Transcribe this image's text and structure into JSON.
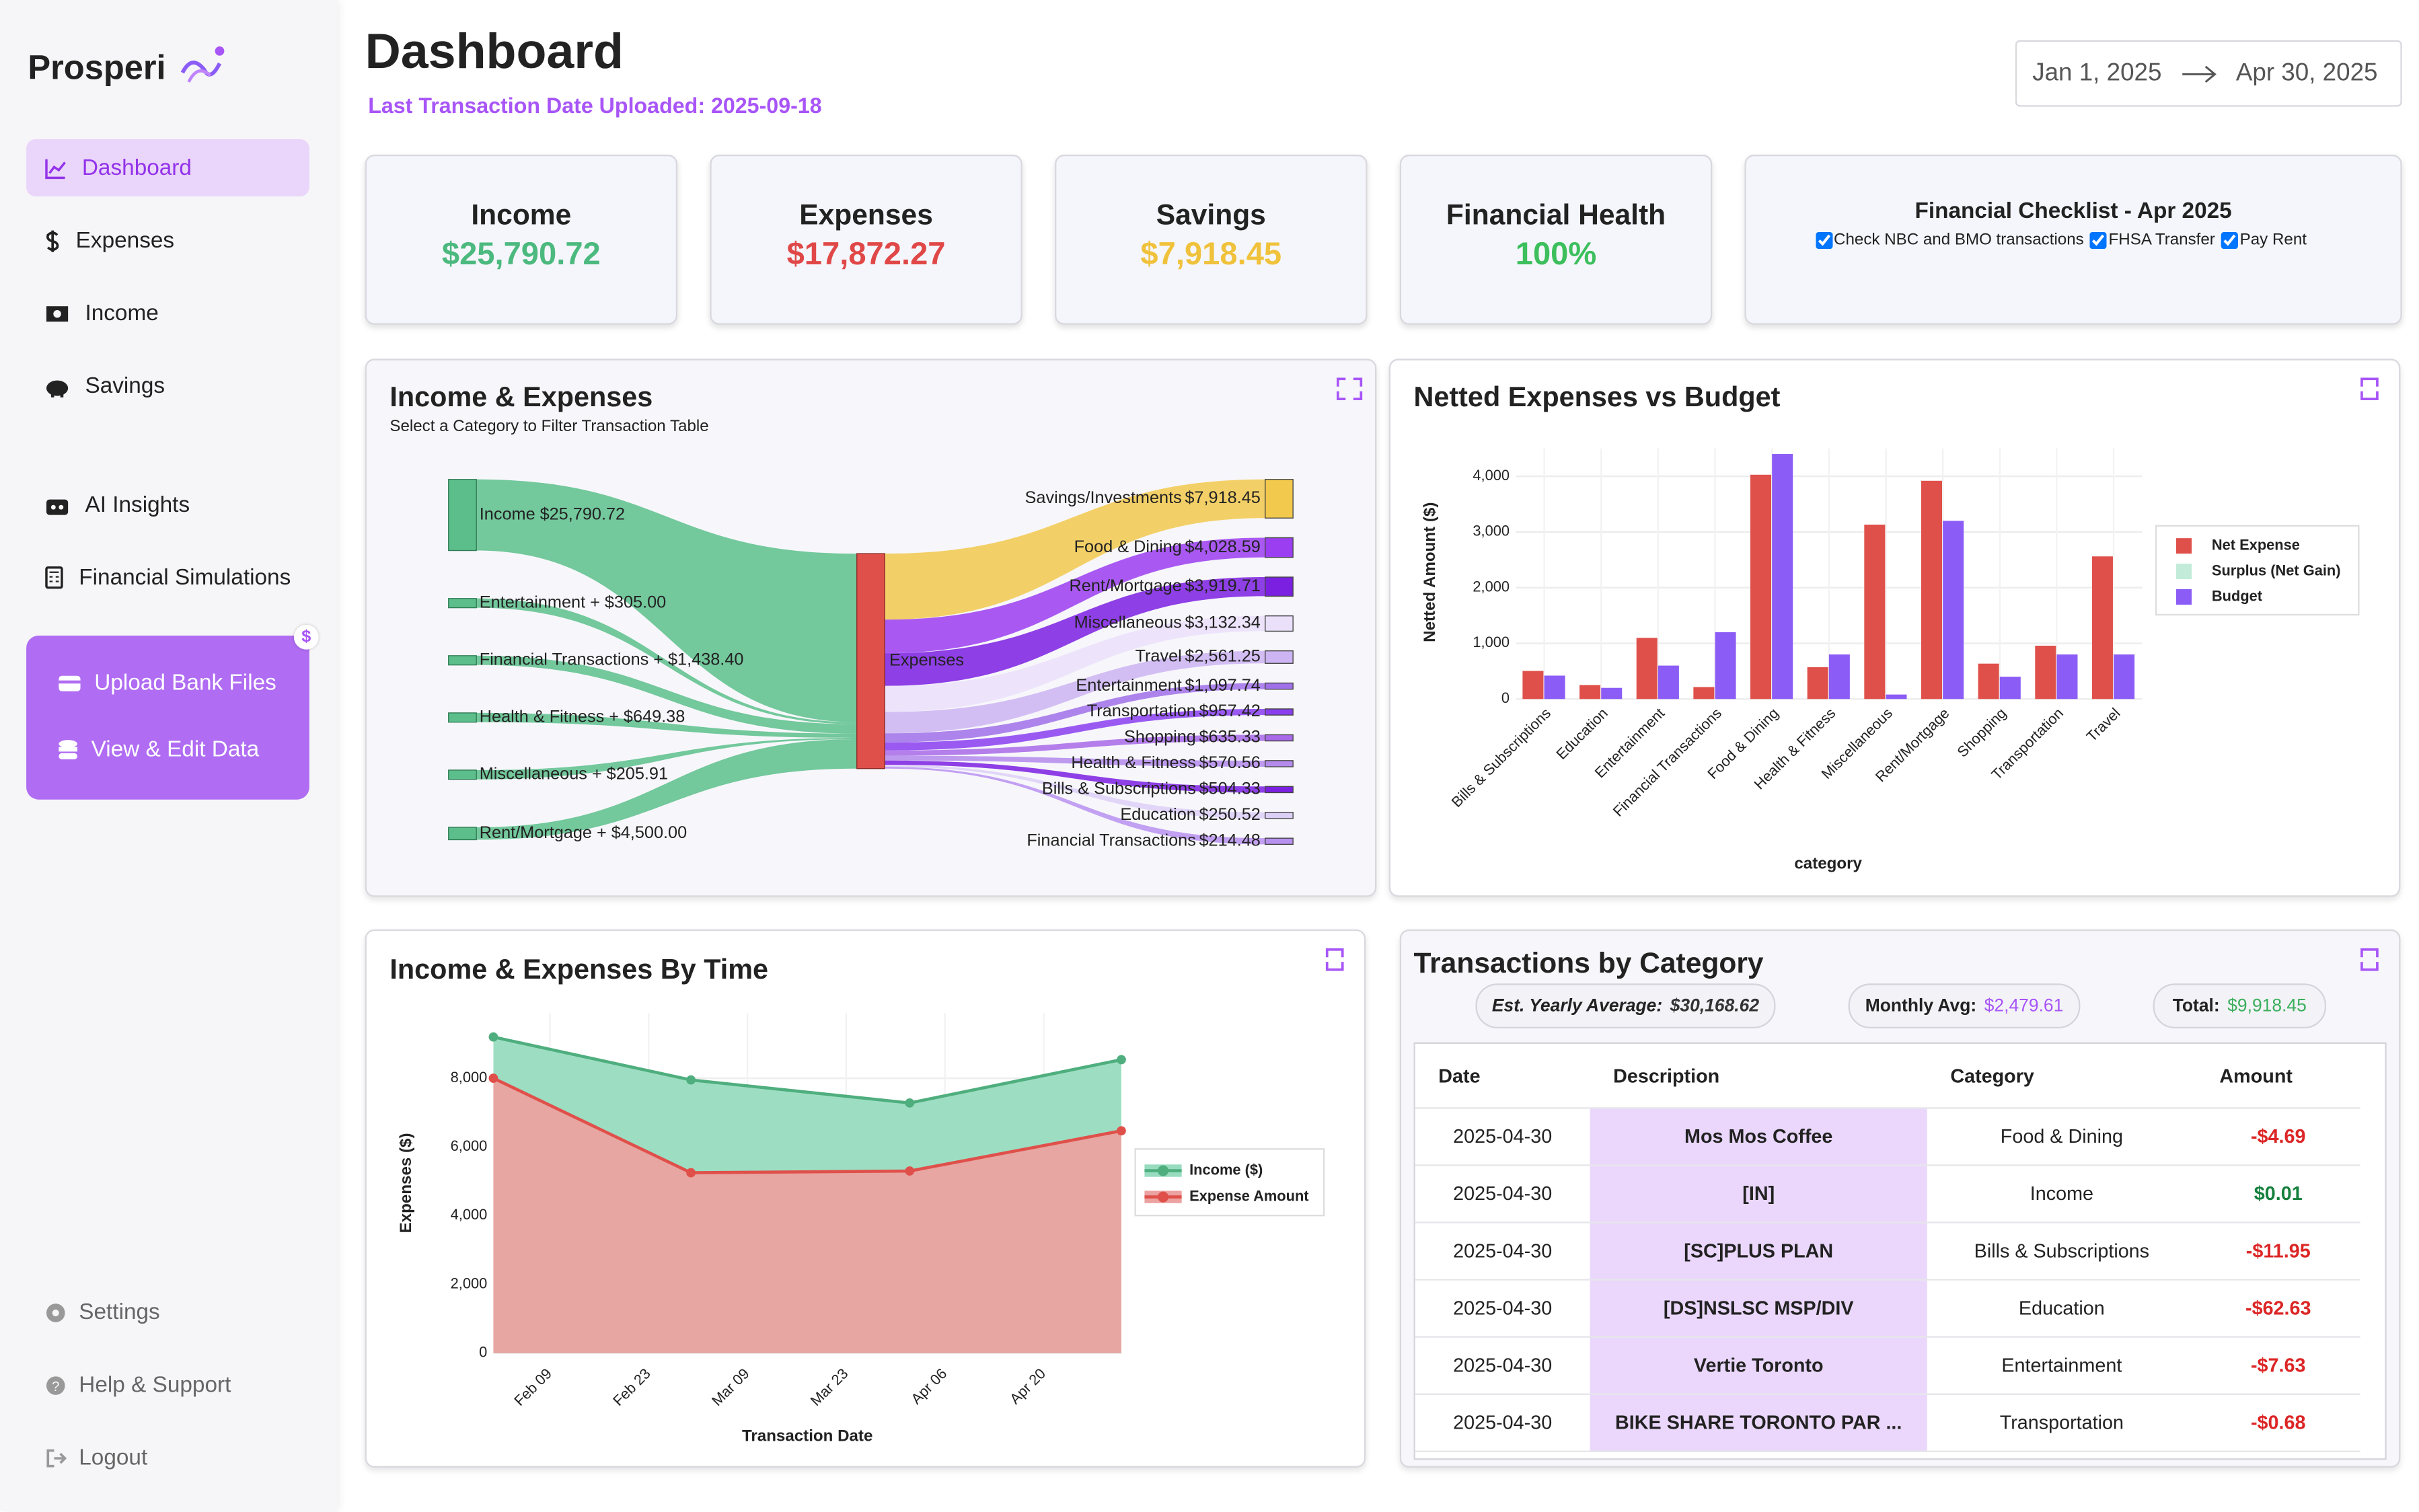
{
  "sidebar": {
    "brand": "Prosperi",
    "nav": [
      "Dashboard",
      "Expenses",
      "Income",
      "Savings",
      "AI Insights",
      "Financial Simulations"
    ],
    "active": 0,
    "actions": [
      "Upload Bank Files",
      "View & Edit Data"
    ],
    "badge": "$",
    "footer": [
      "Settings",
      "Help & Support",
      "Logout"
    ]
  },
  "header": {
    "title": "Dashboard",
    "subtitle": "Last Transaction Date Uploaded: 2025-09-18",
    "date_start": "Jan 1, 2025",
    "date_end": "Apr 30, 2025"
  },
  "cards": [
    {
      "title": "Income",
      "value": "$25,790.72",
      "color": "#4cb97f"
    },
    {
      "title": "Expenses",
      "value": "$17,872.27",
      "color": "#e04848"
    },
    {
      "title": "Savings",
      "value": "$7,918.45",
      "color": "#f0c23c"
    },
    {
      "title": "Financial Health",
      "value": "100%",
      "color": "#3cbf5c"
    }
  ],
  "checklist": {
    "title": "Financial Checklist - Apr 2025",
    "items": [
      {
        "label": "Check NBC and BMO transactions",
        "checked": true
      },
      {
        "label": "FHSA Transfer",
        "checked": true
      },
      {
        "label": "Pay Rent",
        "checked": true
      }
    ]
  },
  "chart_data": [
    {
      "type": "sankey",
      "title": "Income & Expenses",
      "subtitle": "Select a Category to Filter Transaction Table",
      "target": "Expenses",
      "target_color": "#e0504a",
      "source_color": "#5cbf8b",
      "sources": {
        "names": [
          "Income",
          "Entertainment +",
          "Financial Transactions +",
          "Health & Fitness +",
          "Miscellaneous +",
          "Rent/Mortgage +"
        ],
        "values": [
          25790.72,
          305.0,
          1438.4,
          649.38,
          205.91,
          4500.0
        ],
        "value_labels": [
          "$25,790.72",
          "$305.00",
          "$1,438.40",
          "$649.38",
          "$205.91",
          "$4,500.00"
        ]
      },
      "outputs": {
        "names": [
          "Savings/Investments",
          "Food & Dining",
          "Rent/Mortgage",
          "Miscellaneous",
          "Travel",
          "Entertainment",
          "Transportation",
          "Shopping",
          "Health & Fitness",
          "Bills & Subscriptions",
          "Education",
          "Financial Transactions"
        ],
        "values": [
          7918.45,
          4028.59,
          3919.71,
          3132.34,
          2561.25,
          1097.74,
          957.42,
          635.33,
          570.56,
          504.33,
          250.52,
          214.48
        ],
        "value_labels": [
          "$7,918.45",
          "$4,028.59",
          "$3,919.71",
          "$3,132.34",
          "$2,561.25",
          "$1,097.74",
          "$957.42",
          "$635.33",
          "$570.56",
          "$504.33",
          "$250.52",
          "$214.48"
        ],
        "colors": [
          "#f2c94c",
          "#9b3df0",
          "#7b1fe0",
          "#ebe0fa",
          "#cdb4f2",
          "#a070e8",
          "#8a3ef0",
          "#a86ae8",
          "#b48aec",
          "#7b1fe0",
          "#ddd0f7",
          "#b890f0"
        ]
      }
    },
    {
      "type": "bar",
      "title": "Netted Expenses vs Budget",
      "x_label": "category",
      "y_label": "Netted Amount ($)",
      "categories": [
        "Bills & Subscriptions",
        "Education",
        "Entertainment",
        "Financial Transactions",
        "Food & Dining",
        "Health & Fitness",
        "Miscellaneous",
        "Rent/Mortgage",
        "Shopping",
        "Transportation",
        "Travel"
      ],
      "series": [
        {
          "name": "Net Expense",
          "color": "#e0504a",
          "visible": true,
          "values": [
            504.33,
            250.52,
            1097.74,
            214.48,
            4028.59,
            570.56,
            3132.34,
            3919.71,
            635.33,
            957.42,
            2561.25
          ]
        },
        {
          "name": "Budget",
          "color": "#8b5cf6",
          "visible": true,
          "values": [
            420,
            200,
            600,
            1200,
            4400,
            800,
            80,
            3200,
            400,
            800,
            800
          ]
        },
        {
          "name": "Surplus (Net Gain)",
          "color": "#86d9b3",
          "visible": false,
          "values": [
            null,
            null,
            null,
            null,
            null,
            null,
            null,
            null,
            null,
            null,
            null
          ]
        }
      ],
      "ylim": [
        0,
        4500
      ],
      "yticks": [
        0,
        {
          "value": 1000,
          "label": "1,000"
        },
        {
          "value": 2000,
          "label": "2,000"
        },
        {
          "value": 3000,
          "label": "3,000"
        },
        {
          "value": 4000,
          "label": "4,000"
        }
      ],
      "grid": true,
      "legend": "upper right"
    },
    {
      "type": "area",
      "title": "Income & Expenses By Time",
      "x_label": "Transaction Date",
      "y_label": "Expenses ($)",
      "x": [
        "Feb 01",
        "Mar 01",
        "Apr 01",
        "May 01"
      ],
      "xlim": [
        "Feb 01",
        "May 01"
      ],
      "xticks": [
        "Feb 09",
        "Feb 23",
        "Mar 09",
        "Mar 23",
        "Apr 06",
        "Apr 20"
      ],
      "series": [
        {
          "name": "Income ($)",
          "color": "#4fae7e",
          "fill": "#98dcc0",
          "values": [
            9200,
            7950,
            7280,
            8540
          ]
        },
        {
          "name": "Expense Amount",
          "color": "#e0504a",
          "fill": "#eba2a0",
          "values": [
            8000,
            5250,
            5300,
            6470
          ]
        }
      ],
      "ylim": [
        0,
        9900
      ],
      "yticks": [
        0,
        {
          "value": 2000,
          "label": "2,000"
        },
        {
          "value": 4000,
          "label": "4,000"
        },
        {
          "value": 6000,
          "label": "6,000"
        },
        {
          "value": 8000,
          "label": "8,000"
        }
      ],
      "grid": true,
      "legend": "right"
    }
  ],
  "transactions": {
    "title": "Transactions by Category",
    "stats": [
      {
        "label": "Est. Yearly Average:",
        "value": "$30,168.62",
        "color": "#333333"
      },
      {
        "label": "Monthly Avg:",
        "value": "$2,479.61",
        "color": "#a855f7"
      },
      {
        "label": "Total:",
        "value": "$9,918.45",
        "color": "#3cae5c"
      }
    ],
    "columns": [
      "Date",
      "Description",
      "Category",
      "Amount"
    ],
    "rows": [
      [
        "2025-04-30",
        "Mos Mos Coffee",
        "Food & Dining",
        "-$4.69"
      ],
      [
        "2025-04-30",
        "[IN]",
        "Income",
        "$0.01"
      ],
      [
        "2025-04-30",
        "[SC]PLUS PLAN",
        "Bills & Subscriptions",
        "-$11.95"
      ],
      [
        "2025-04-30",
        "[DS]NSLSC MSP/DIV",
        "Education",
        "-$62.63"
      ],
      [
        "2025-04-30",
        "Vertie Toronto",
        "Entertainment",
        "-$7.63"
      ],
      [
        "2025-04-30",
        "BIKE SHARE TORONTO PAR ...",
        "Transportation",
        "-$0.68"
      ]
    ]
  }
}
